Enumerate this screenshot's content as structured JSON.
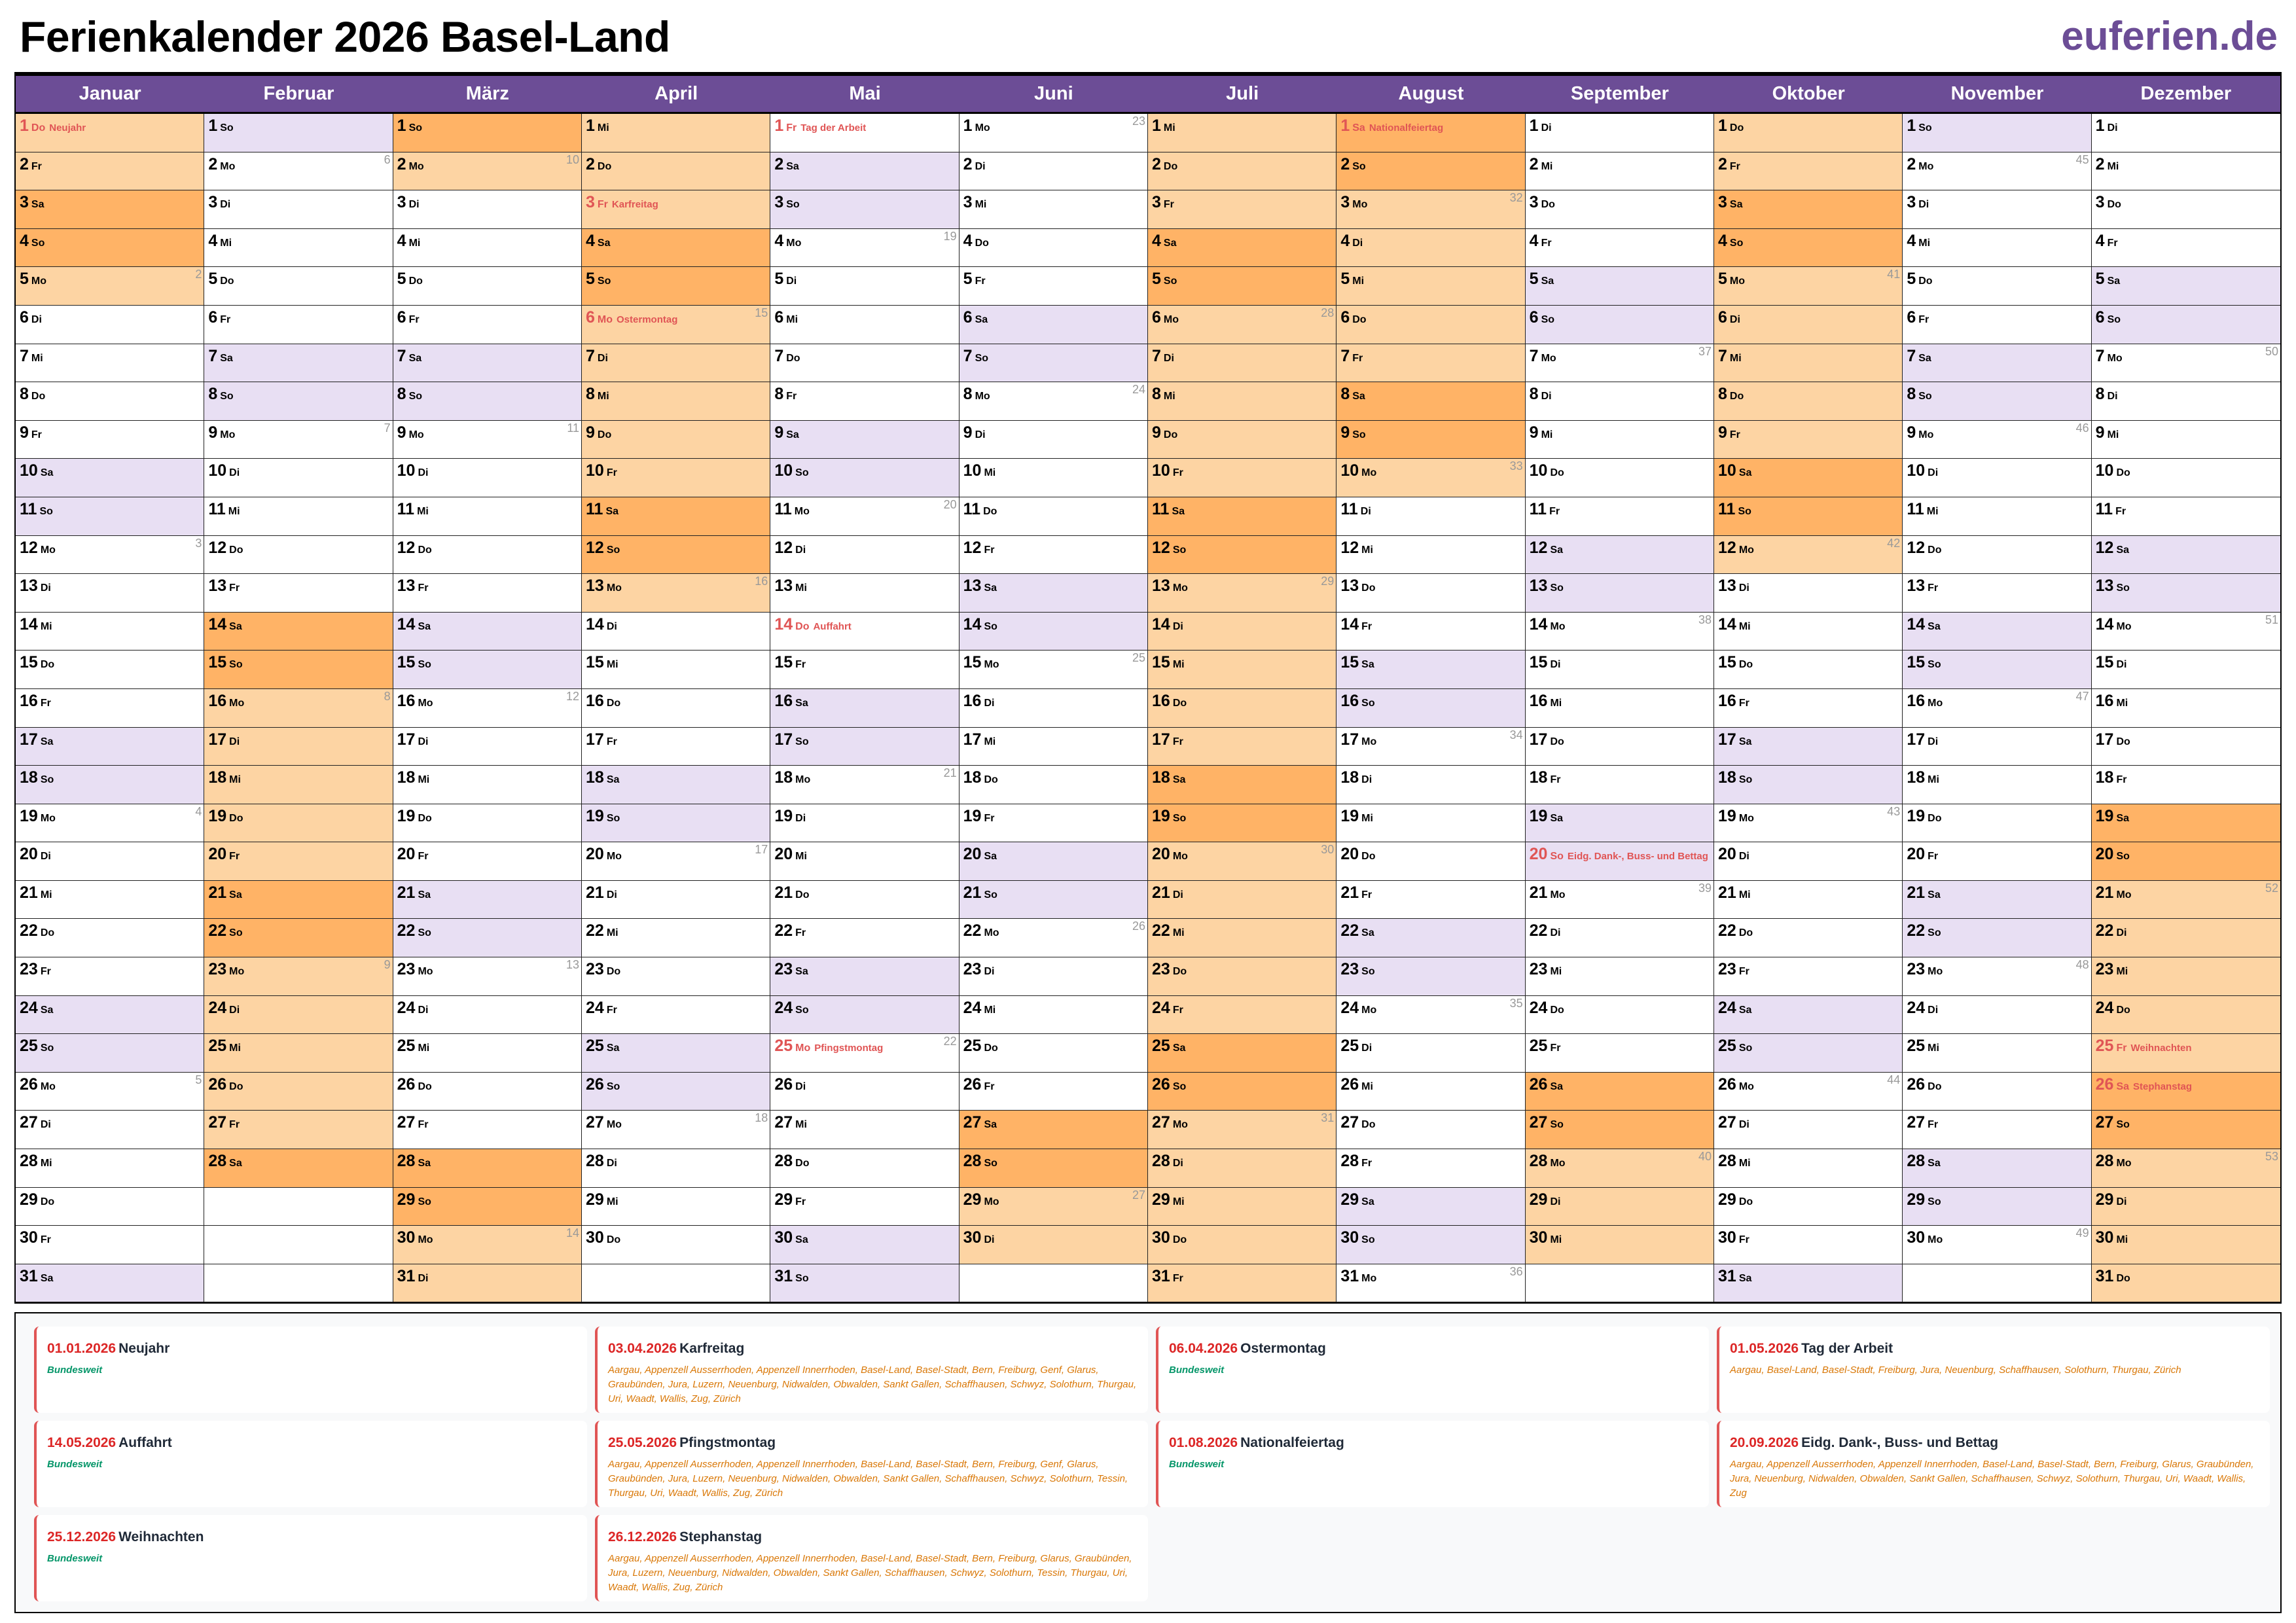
{
  "header": {
    "title": "Ferienkalender 2026 Basel-Land",
    "brand": "euferien.de"
  },
  "colors": {
    "header": "#6c4d96",
    "weekend": "#e8dff3",
    "ferien_weekday": "#fdd4a3",
    "ferien_weekend": "#ffb366",
    "holiday_text": "#e05555"
  },
  "calendar": {
    "year": 2026,
    "weekdays": [
      "Mo",
      "Di",
      "Mi",
      "Do",
      "Fr",
      "Sa",
      "So"
    ],
    "months": [
      {
        "name": "Januar",
        "days": 31,
        "ferien": [
          [
            1,
            5
          ]
        ],
        "holidays": {
          "1": "Neujahr"
        },
        "week_numbers": {
          "5": 2,
          "12": 3,
          "19": 4,
          "26": 5
        }
      },
      {
        "name": "Februar",
        "days": 28,
        "ferien": [
          [
            14,
            28
          ]
        ],
        "holidays": {},
        "week_numbers": {
          "2": 6,
          "9": 7,
          "16": 8,
          "23": 9
        }
      },
      {
        "name": "März",
        "days": 31,
        "ferien": [
          [
            1,
            2
          ],
          [
            28,
            31
          ]
        ],
        "holidays": {},
        "week_numbers": {
          "2": 10,
          "9": 11,
          "16": 12,
          "23": 13,
          "30": 14
        }
      },
      {
        "name": "April",
        "days": 30,
        "ferien": [
          [
            1,
            13
          ]
        ],
        "holidays": {
          "3": "Karfreitag",
          "6": "Ostermontag"
        },
        "week_numbers": {
          "6": 15,
          "13": 16,
          "20": 17,
          "27": 18
        }
      },
      {
        "name": "Mai",
        "days": 31,
        "ferien": [],
        "holidays": {
          "1": "Tag der Arbeit",
          "14": "Auffahrt",
          "25": "Pfingstmontag"
        },
        "week_numbers": {
          "4": 19,
          "11": 20,
          "18": 21,
          "25": 22
        }
      },
      {
        "name": "Juni",
        "days": 30,
        "ferien": [
          [
            27,
            30
          ]
        ],
        "holidays": {},
        "week_numbers": {
          "1": 23,
          "8": 24,
          "15": 25,
          "22": 26,
          "29": 27
        }
      },
      {
        "name": "Juli",
        "days": 31,
        "ferien": [
          [
            1,
            31
          ]
        ],
        "holidays": {},
        "week_numbers": {
          "6": 28,
          "13": 29,
          "20": 30,
          "27": 31
        }
      },
      {
        "name": "August",
        "days": 31,
        "ferien": [
          [
            1,
            10
          ]
        ],
        "holidays": {
          "1": "Nationalfeiertag"
        },
        "week_numbers": {
          "3": 32,
          "10": 33,
          "17": 34,
          "24": 35,
          "31": 36
        }
      },
      {
        "name": "September",
        "days": 30,
        "ferien": [
          [
            26,
            30
          ]
        ],
        "holidays": {
          "20": "Eidg. Dank-, Buss- und Bettag"
        },
        "week_numbers": {
          "7": 37,
          "14": 38,
          "21": 39,
          "28": 40
        }
      },
      {
        "name": "Oktober",
        "days": 31,
        "ferien": [
          [
            1,
            12
          ]
        ],
        "holidays": {},
        "week_numbers": {
          "5": 41,
          "12": 42,
          "19": 43,
          "26": 44
        }
      },
      {
        "name": "November",
        "days": 30,
        "ferien": [],
        "holidays": {},
        "week_numbers": {
          "2": 45,
          "9": 46,
          "16": 47,
          "23": 48,
          "30": 49
        }
      },
      {
        "name": "Dezember",
        "days": 31,
        "ferien": [
          [
            19,
            31
          ]
        ],
        "holidays": {
          "25": "Weihnachten",
          "26": "Stephanstag"
        },
        "week_numbers": {
          "7": 50,
          "14": 51,
          "21": 52,
          "28": 53
        }
      }
    ]
  },
  "legend": [
    {
      "date": "01.01.2026",
      "name": "Neujahr",
      "regions": "Bundesweit",
      "national": true
    },
    {
      "date": "03.04.2026",
      "name": "Karfreitag",
      "regions": "Aargau, Appenzell Ausserrhoden, Appenzell Innerrhoden, Basel-Land, Basel-Stadt, Bern, Freiburg, Genf, Glarus, Graubünden, Jura, Luzern, Neuenburg, Nidwalden, Obwalden, Sankt Gallen, Schaffhausen, Schwyz, Solothurn, Thurgau, Uri, Waadt, Wallis, Zug, Zürich",
      "national": false
    },
    {
      "date": "06.04.2026",
      "name": "Ostermontag",
      "regions": "Bundesweit",
      "national": true
    },
    {
      "date": "01.05.2026",
      "name": "Tag der Arbeit",
      "regions": "Aargau, Basel-Land, Basel-Stadt, Freiburg, Jura, Neuenburg, Schaffhausen, Solothurn, Thurgau, Zürich",
      "national": false
    },
    {
      "date": "14.05.2026",
      "name": "Auffahrt",
      "regions": "Bundesweit",
      "national": true
    },
    {
      "date": "25.05.2026",
      "name": "Pfingstmontag",
      "regions": "Aargau, Appenzell Ausserrhoden, Appenzell Innerrhoden, Basel-Land, Basel-Stadt, Bern, Freiburg, Genf, Glarus, Graubünden, Jura, Luzern, Neuenburg, Nidwalden, Obwalden, Sankt Gallen, Schaffhausen, Schwyz, Solothurn, Tessin, Thurgau, Uri, Waadt, Wallis, Zug, Zürich",
      "national": false
    },
    {
      "date": "01.08.2026",
      "name": "Nationalfeiertag",
      "regions": "Bundesweit",
      "national": true
    },
    {
      "date": "20.09.2026",
      "name": "Eidg. Dank-, Buss- und Bettag",
      "regions": "Aargau, Appenzell Ausserrhoden, Appenzell Innerrhoden, Basel-Land, Basel-Stadt, Bern, Freiburg, Glarus, Graubünden, Jura, Neuenburg, Nidwalden, Obwalden, Sankt Gallen, Schaffhausen, Schwyz, Solothurn, Thurgau, Uri, Waadt, Wallis, Zug",
      "national": false
    },
    {
      "date": "25.12.2026",
      "name": "Weihnachten",
      "regions": "Bundesweit",
      "national": true
    },
    {
      "date": "26.12.2026",
      "name": "Stephanstag",
      "regions": "Aargau, Appenzell Ausserrhoden, Appenzell Innerrhoden, Basel-Land, Basel-Stadt, Bern, Freiburg, Glarus, Graubünden, Jura, Luzern, Neuenburg, Nidwalden, Obwalden, Sankt Gallen, Schaffhausen, Schwyz, Solothurn, Tessin, Thurgau, Uri, Waadt, Wallis, Zug, Zürich",
      "national": false
    }
  ]
}
